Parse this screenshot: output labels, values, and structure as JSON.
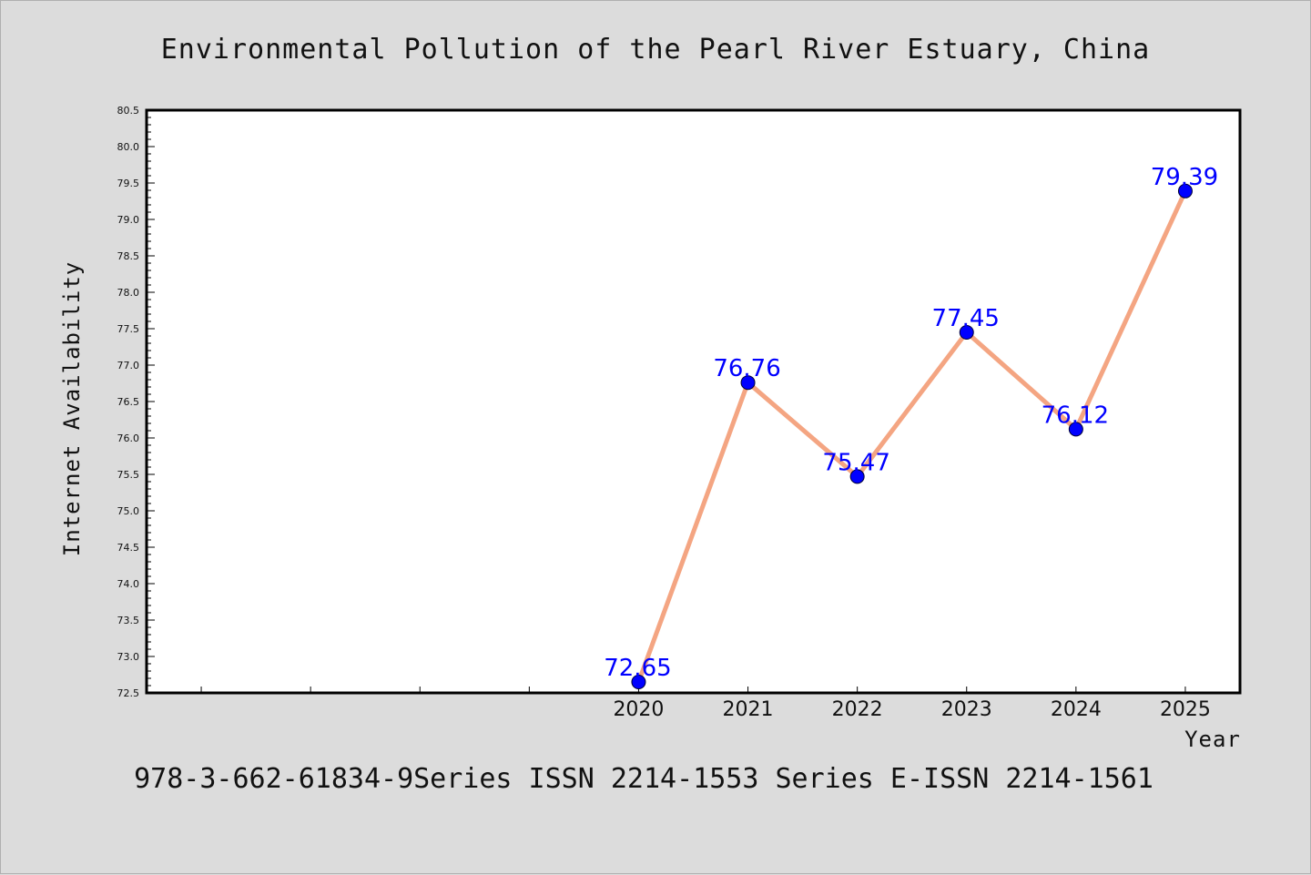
{
  "chart_data": {
    "type": "line",
    "title": "Environmental Pollution of the Pearl River Estuary, China",
    "xlabel": "Year",
    "ylabel": "Internet Availability",
    "x": [
      2020,
      2021,
      2022,
      2023,
      2024,
      2025
    ],
    "x_tick_labels": [
      "2020",
      "2021",
      "2022",
      "2023",
      "2024",
      "2025"
    ],
    "series": [
      {
        "values": [
          72.65,
          76.76,
          75.47,
          77.45,
          76.12,
          79.39
        ]
      }
    ],
    "data_labels": [
      "72.65",
      "76.76",
      "75.47",
      "77.45",
      "76.12",
      "79.39"
    ],
    "xlim": [
      2015.5,
      2025.5
    ],
    "ylim": [
      72.5,
      80.5
    ],
    "y_tick_labels": [
      "72.5",
      "73.0",
      "73.5",
      "74.0",
      "74.5",
      "75.0",
      "75.5",
      "76.0",
      "76.5",
      "77.0",
      "77.5",
      "78.0",
      "78.5",
      "79.0",
      "79.5",
      "80.0",
      "80.5"
    ],
    "grid": false,
    "line_color": "#f4a582",
    "marker_color": "#0000ff",
    "label_color": "#0000ff",
    "plot_background": "#ffffff",
    "figure_background": "#dcdcdc"
  },
  "footer": {
    "text": "978-3-662-61834-9Series ISSN 2214-1553 Series E-ISSN 2214-1561"
  }
}
